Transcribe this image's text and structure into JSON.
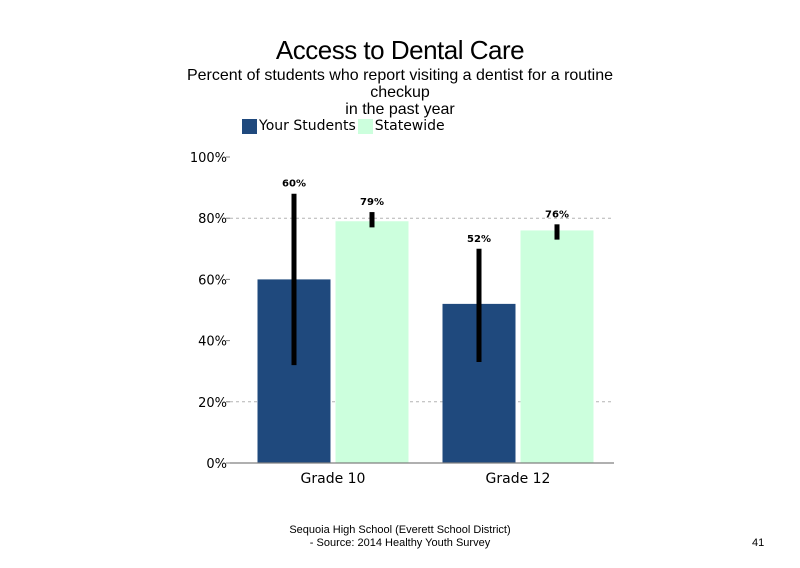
{
  "slide": {
    "title": "Access to Dental Care",
    "subtitle_lines": [
      "Percent of students who report visiting a dentist for a routine",
      "checkup",
      "in the past year"
    ],
    "footer_lines": [
      "Sequoia High School (Everett School District)",
      "- Source: 2014 Healthy Youth Survey"
    ],
    "page_number": "41"
  },
  "chart_data": {
    "type": "bar",
    "title": "Access to Dental Care",
    "categories": [
      "Grade 10",
      "Grade 12"
    ],
    "series": [
      {
        "name": "Your Students",
        "color": "#1F497D",
        "values": [
          60,
          52
        ],
        "labels": [
          "60%",
          "52%"
        ],
        "error_low": [
          32,
          33
        ],
        "error_high": [
          88,
          70
        ]
      },
      {
        "name": "Statewide",
        "color": "#CCFFDD",
        "values": [
          79,
          76
        ],
        "labels": [
          "79%",
          "76%"
        ],
        "error_low": [
          77,
          73
        ],
        "error_high": [
          82,
          78
        ]
      }
    ],
    "ylim": [
      0,
      100
    ],
    "yticks": [
      0,
      20,
      40,
      60,
      80,
      100
    ],
    "ytick_labels": [
      "0%",
      "20%",
      "40%",
      "60%",
      "80%",
      "100%"
    ],
    "gridlines": "dashed at 20% and 80%",
    "legend_position": "top-left"
  }
}
